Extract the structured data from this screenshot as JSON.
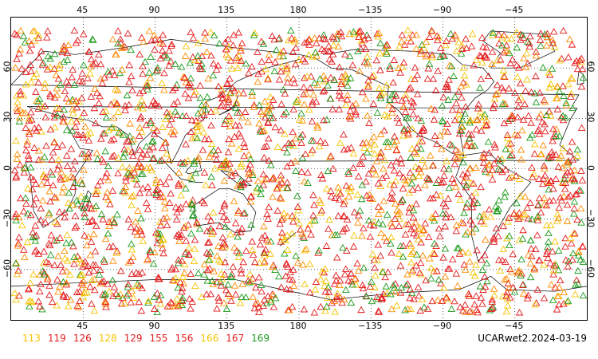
{
  "map": {
    "top_ticks": [
      "45",
      "90",
      "135",
      "180",
      "−135",
      "−90",
      "−45"
    ],
    "bottom_ticks": [
      "45",
      "90",
      "135",
      "180",
      "−135",
      "−90",
      "−45"
    ],
    "left_ticks": [
      "60",
      "30",
      "0",
      "−30",
      "−60"
    ],
    "right_ticks": [
      "60",
      "30",
      "0",
      "−30",
      "−60"
    ],
    "longitude_ticks_deg": [
      45,
      90,
      135,
      180,
      225,
      270,
      315
    ],
    "latitude_ticks_deg": [
      60,
      30,
      0,
      -30,
      -60
    ],
    "projection_lon_range": [
      0,
      360
    ],
    "projection_lat_range": [
      -90,
      90
    ],
    "marker_shape": "triangle-outline",
    "marker_colors": {
      "red": "#e41a1c",
      "orange": "#ff8c00",
      "yellow": "#f5c400",
      "green": "#1a9a1a"
    },
    "gridlines": "dotted"
  },
  "legend": {
    "items": [
      {
        "label": "113",
        "color": "#f5c400"
      },
      {
        "label": "119",
        "color": "#e41a1c"
      },
      {
        "label": "126",
        "color": "#e41a1c"
      },
      {
        "label": "128",
        "color": "#f5c400"
      },
      {
        "label": "129",
        "color": "#e41a1c"
      },
      {
        "label": "155",
        "color": "#e41a1c"
      },
      {
        "label": "156",
        "color": "#e41a1c"
      },
      {
        "label": "166",
        "color": "#f5c400"
      },
      {
        "label": "167",
        "color": "#e41a1c"
      },
      {
        "label": "169",
        "color": "#1a9a1a"
      }
    ]
  },
  "stamp": {
    "text": "UCARwet2.2024-03-19"
  }
}
